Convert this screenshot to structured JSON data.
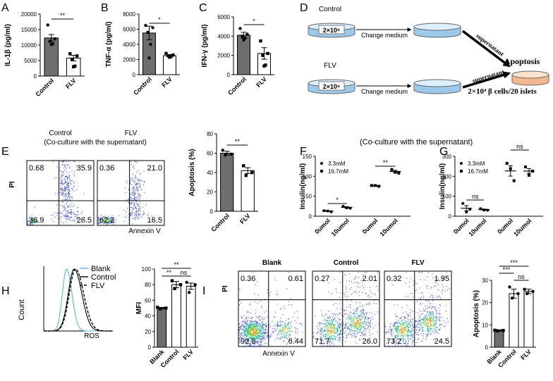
{
  "chart_data": [
    {
      "panel": "A",
      "type": "bar",
      "ylabel": "IL-1β (pg/ml)",
      "categories": [
        "Control",
        "FLV"
      ],
      "values": [
        12300,
        5800
      ],
      "errors": [
        1100,
        900
      ],
      "points": [
        [
          16500,
          12000,
          11200,
          10400,
          10200
        ],
        [
          7200,
          6500,
          5400,
          3200,
          3000
        ]
      ],
      "colors": [
        "#6e6e6e",
        "#ffffff"
      ],
      "markers": [
        "circle",
        "square"
      ],
      "ylim": [
        0,
        20000
      ],
      "yticks": [
        0,
        5000,
        10000,
        15000,
        20000
      ],
      "annotations": [
        "**"
      ]
    },
    {
      "panel": "B",
      "type": "bar",
      "ylabel": "TNF-α (pg/ml)",
      "categories": [
        "Control",
        "FLV"
      ],
      "values": [
        5500,
        2500
      ],
      "errors": [
        900,
        150
      ],
      "points": [
        [
          6500,
          6200,
          5600,
          4000,
          2200
        ],
        [
          2800,
          2600,
          2500,
          2400,
          2300
        ]
      ],
      "colors": [
        "#6e6e6e",
        "#ffffff"
      ],
      "markers": [
        "circle",
        "square"
      ],
      "ylim": [
        0,
        8000
      ],
      "yticks": [
        0,
        2000,
        4000,
        6000,
        8000
      ],
      "annotations": [
        "*"
      ]
    },
    {
      "panel": "C",
      "type": "bar",
      "ylabel": "IFN-γ (pg/ml)",
      "categories": [
        "Control",
        "FLV"
      ],
      "values": [
        4100,
        2200
      ],
      "errors": [
        300,
        600
      ],
      "points": [
        [
          4800,
          4200,
          4000,
          3800,
          3600
        ],
        [
          3500,
          2200,
          2000,
          1000,
          900
        ]
      ],
      "colors": [
        "#6e6e6e",
        "#ffffff"
      ],
      "markers": [
        "circle",
        "square"
      ],
      "ylim": [
        0,
        6000
      ],
      "yticks": [
        0,
        2000,
        4000,
        6000
      ],
      "annotations": [
        "*"
      ]
    },
    {
      "panel": "E",
      "type": "flow",
      "subtitle": "(Co-culture with the supernatant)",
      "xlabel": "Annexin V",
      "ylabel": "PI",
      "plots": [
        {
          "title": "Control",
          "values": [
            0.68,
            35.9,
            36.9,
            26.5
          ]
        },
        {
          "title": "FLV",
          "values": [
            0.36,
            21,
            62.2,
            16.5
          ],
          "value_labels": [
            "0.36",
            "21.0",
            "62.2",
            "16.5"
          ]
        }
      ]
    },
    {
      "type": "bar",
      "ylabel": "Apoptosis (%)",
      "categories": [
        "Control",
        "FLV"
      ],
      "values": [
        60,
        42
      ],
      "errors": [
        2,
        3
      ],
      "points": [
        [
          63,
          59,
          58
        ],
        [
          47,
          40,
          37
        ]
      ],
      "colors": [
        "#6e6e6e",
        "#ffffff"
      ],
      "markers": [
        "circle",
        "square"
      ],
      "ylim": [
        0,
        80
      ],
      "yticks": [
        0,
        20,
        40,
        60,
        80
      ],
      "annotations": [
        "**"
      ]
    },
    {
      "panel": "F",
      "type": "dot",
      "title": "(Co-culture with the supernatant)",
      "ylabel": "Insulin(ng/ml)",
      "categories": [
        "0umol",
        "10umol",
        "0umol",
        "10umol"
      ],
      "values": [
        13,
        22,
        76,
        112
      ],
      "errors": [
        1,
        2,
        1,
        3
      ],
      "points": [
        [
          14,
          11,
          13
        ],
        [
          25,
          20,
          21
        ],
        [
          77,
          75,
          77
        ],
        [
          117,
          108,
          110
        ]
      ],
      "markers": [
        "circle",
        "circle",
        "square",
        "square"
      ],
      "series": [
        {
          "name": "3.3mM",
          "marker": "circle"
        },
        {
          "name": "16.7mM",
          "marker": "square"
        }
      ],
      "ylim": [
        0,
        150
      ],
      "yticks": [
        0,
        50,
        100,
        150
      ],
      "annotations": [
        "*",
        "**"
      ]
    },
    {
      "panel": "G",
      "type": "dot",
      "ylabel": "Insulin(ng/ml)",
      "categories": [
        "0umol",
        "10umol",
        "0umol",
        "10umol"
      ],
      "values": [
        40,
        33,
        227,
        226
      ],
      "errors": [
        13,
        3,
        26,
        12
      ],
      "points": [
        [
          64,
          35,
          21
        ],
        [
          38,
          30,
          31
        ],
        [
          265,
          178,
          238
        ],
        [
          247,
          226,
          205
        ]
      ],
      "markers": [
        "circle",
        "circle",
        "square",
        "square"
      ],
      "series": [
        {
          "name": "3.3mM",
          "marker": "circle"
        },
        {
          "name": "16.7mM",
          "marker": "square"
        }
      ],
      "ylim": [
        0,
        300
      ],
      "yticks": [
        0,
        100,
        200,
        300
      ],
      "annotations": [
        "ns",
        "ns"
      ]
    },
    {
      "panel": "H",
      "type": "histogram",
      "xlabel": "ROS",
      "ylabel": "Count",
      "series": [
        {
          "name": "Blank",
          "color": "#5ab4e0"
        },
        {
          "name": "Control",
          "color": "#000000"
        },
        {
          "name": "FLV",
          "color": "#000000",
          "dashed": true
        }
      ]
    },
    {
      "type": "bar",
      "ylabel": "MFI",
      "categories": [
        "Blank",
        "Control",
        "FLV"
      ],
      "values": [
        50,
        80,
        78
      ],
      "errors": [
        1,
        4,
        4
      ],
      "points": [
        [
          51,
          50,
          49
        ],
        [
          85,
          80,
          75
        ],
        [
          83,
          80,
          70
        ]
      ],
      "colors": [
        "#6e6e6e",
        "#ffffff",
        "#ffffff"
      ],
      "markers": [
        "square",
        "square",
        "circle"
      ],
      "ylim": [
        0,
        100
      ],
      "yticks": [
        0,
        20,
        40,
        60,
        80,
        100
      ],
      "annotations": [
        "**",
        "**",
        "ns"
      ]
    },
    {
      "panel": "I",
      "type": "flow",
      "xlabel": "Annexin V",
      "ylabel": "PI",
      "plots": [
        {
          "title": "Blank",
          "values": [
            0.36,
            0.61,
            92.6,
            6.44
          ]
        },
        {
          "title": "Control",
          "values": [
            0.27,
            2.01,
            71.7,
            26
          ],
          "value_labels": [
            "0.27",
            "2.01",
            "71.7",
            "26.0"
          ]
        },
        {
          "title": "FLV",
          "values": [
            0.32,
            1.95,
            73.2,
            24.5
          ]
        }
      ]
    },
    {
      "type": "bar",
      "ylabel": "Apoptosis (%)",
      "categories": [
        "Blank",
        "Control",
        "FLV"
      ],
      "values": [
        7.5,
        24,
        25
      ],
      "errors": [
        0.3,
        2,
        1
      ],
      "points": [
        [
          7.6,
          7.5,
          7.3
        ],
        [
          27,
          24,
          22
        ],
        [
          26,
          25,
          24
        ]
      ],
      "colors": [
        "#6e6e6e",
        "#ffffff",
        "#ffffff"
      ],
      "markers": [
        "square",
        "circle",
        "circle"
      ],
      "ylim": [
        0,
        30
      ],
      "yticks": [
        0,
        10,
        20,
        30
      ],
      "annotations": [
        "***",
        "***",
        "ns"
      ]
    }
  ],
  "diagram": {
    "panel": "D",
    "rows": [
      {
        "label": "Control",
        "seed": "2×10⁶",
        "step": "Change medium",
        "transfer": "supernatant"
      },
      {
        "label": "FLV",
        "seed": "2×10⁶",
        "step": "Change medium",
        "transfer": "supernatant"
      }
    ],
    "result": "Apoptosis",
    "target": "2×10⁴ β cells/20 islets"
  }
}
